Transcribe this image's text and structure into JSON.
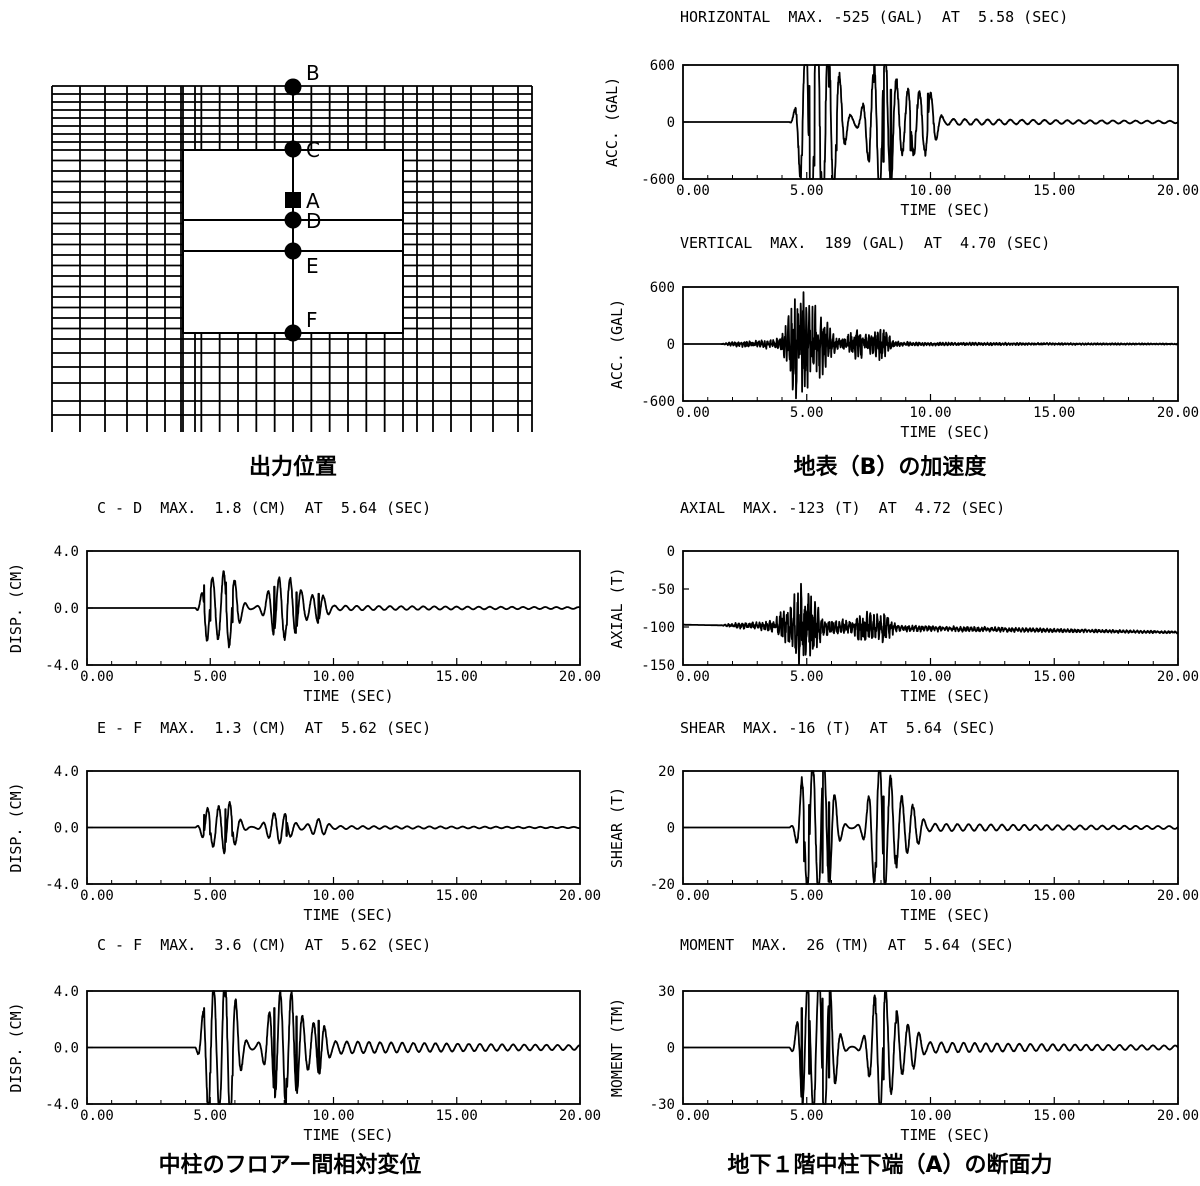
{
  "figure": {
    "mesh_caption": "出力位置",
    "ground_caption": "地表（B）の加速度",
    "drift_caption": "中柱のフロアー間相対変位",
    "force_caption": "地下１階中柱下端（A）の断面力",
    "mesh_points": [
      {
        "label": "B",
        "marker": "circle"
      },
      {
        "label": "C",
        "marker": "circle"
      },
      {
        "label": "A",
        "marker": "square"
      },
      {
        "label": "D",
        "marker": "circle"
      },
      {
        "label": "E",
        "marker": "circle"
      },
      {
        "label": "F",
        "marker": "circle"
      }
    ]
  },
  "chart_data": [
    {
      "type": "line",
      "title": "HORIZONTAL  MAX. -525 (GAL)  AT  5.58 (SEC)",
      "xlabel": "TIME (SEC)",
      "ylabel": "ACC. (GAL)",
      "xlim": [
        0,
        20
      ],
      "ylim": [
        -600,
        600
      ],
      "xticks": [
        "0.00",
        "5.00",
        "10.00",
        "15.00",
        "20.00"
      ],
      "yticks": [
        "600",
        "0",
        "-600"
      ],
      "series": [
        {
          "onset": 4.3,
          "dom_period": 0.46,
          "peaks": [
            [
              4.8,
              -350
            ],
            [
              5.1,
              380
            ],
            [
              5.3,
              -460
            ],
            [
              5.58,
              -525
            ],
            [
              5.9,
              370
            ],
            [
              6.2,
              -300
            ],
            [
              7.7,
              420
            ],
            [
              8.1,
              -420
            ],
            [
              8.4,
              340
            ],
            [
              9.2,
              -300
            ],
            [
              9.9,
              300
            ]
          ],
          "decay_to": 30,
          "noise": 0.04
        }
      ]
    },
    {
      "type": "line",
      "title": "VERTICAL  MAX.  189 (GAL)  AT  4.70 (SEC)",
      "xlabel": "TIME (SEC)",
      "ylabel": "ACC. (GAL)",
      "xlim": [
        0,
        20
      ],
      "ylim": [
        -600,
        600
      ],
      "xticks": [
        "0.00",
        "5.00",
        "10.00",
        "15.00",
        "20.00"
      ],
      "yticks": [
        "600",
        "0",
        "-600"
      ],
      "series": [
        {
          "onset": 1.5,
          "dom_period": 0.12,
          "peaks": [
            [
              4.7,
              189
            ],
            [
              5.2,
              -130
            ],
            [
              4.5,
              120
            ],
            [
              5.7,
              -110
            ],
            [
              7.0,
              90
            ],
            [
              8.0,
              -90
            ]
          ],
          "decay_to": 8,
          "noise": 0.35,
          "base_amp": 40
        }
      ]
    },
    {
      "type": "line",
      "title": "C - D  MAX.  1.8 (CM)  AT  5.64 (SEC)",
      "xlabel": "TIME (SEC)",
      "ylabel": "DISP. (CM)",
      "xlim": [
        0,
        20
      ],
      "ylim": [
        -4,
        4
      ],
      "xticks": [
        "0.00",
        "5.00",
        "10.00",
        "15.00",
        "20.00"
      ],
      "yticks": [
        "4.0",
        "0.0",
        "-4.0"
      ],
      "series": [
        {
          "onset": 4.4,
          "dom_period": 0.45,
          "peaks": [
            [
              4.75,
              1.6
            ],
            [
              5.0,
              -0.9
            ],
            [
              5.64,
              1.8
            ],
            [
              5.9,
              -1.0
            ],
            [
              7.6,
              1.5
            ],
            [
              8.1,
              -1.2
            ],
            [
              8.5,
              1.1
            ],
            [
              9.4,
              1.0
            ]
          ],
          "decay_to": 0.15,
          "noise": 0.02
        }
      ]
    },
    {
      "type": "line",
      "title": "AXIAL  MAX. -123 (T)  AT  4.72 (SEC)",
      "xlabel": "TIME (SEC)",
      "ylabel": "AXIAL (T)",
      "xlim": [
        0,
        20
      ],
      "ylim": [
        -150,
        0
      ],
      "xticks": [
        "0.00",
        "5.00",
        "10.00",
        "15.00",
        "20.00"
      ],
      "yticks": [
        "0",
        "-50",
        "-100",
        "-150"
      ],
      "series": [
        {
          "baseline": -97,
          "baseline_end": -107,
          "onset": 1.5,
          "dom_period": 0.14,
          "peaks": [
            [
              4.72,
              -26
            ],
            [
              5.2,
              -18
            ],
            [
              4.0,
              10
            ],
            [
              7.3,
              -12
            ],
            [
              8.1,
              -10
            ]
          ],
          "decay_to": 2,
          "noise": 0.3,
          "base_amp": 6
        }
      ]
    },
    {
      "type": "line",
      "title": "E - F  MAX.  1.3 (CM)  AT  5.62 (SEC)",
      "xlabel": "TIME (SEC)",
      "ylabel": "DISP. (CM)",
      "xlim": [
        0,
        20
      ],
      "ylim": [
        -4,
        4
      ],
      "xticks": [
        "0.00",
        "5.00",
        "10.00",
        "15.00",
        "20.00"
      ],
      "yticks": [
        "4.0",
        "0.0",
        "-4.0"
      ],
      "series": [
        {
          "onset": 4.4,
          "dom_period": 0.45,
          "peaks": [
            [
              4.75,
              0.9
            ],
            [
              5.0,
              -0.5
            ],
            [
              5.62,
              1.3
            ],
            [
              5.9,
              -0.6
            ],
            [
              7.6,
              0.9
            ],
            [
              8.1,
              -0.6
            ],
            [
              9.4,
              0.6
            ]
          ],
          "decay_to": 0.1,
          "noise": 0.02
        }
      ]
    },
    {
      "type": "line",
      "title": "SHEAR  MAX. -16 (T)  AT  5.64 (SEC)",
      "xlabel": "TIME (SEC)",
      "ylabel": "SHEAR (T)",
      "xlim": [
        0,
        20
      ],
      "ylim": [
        -20,
        20
      ],
      "xticks": [
        "0.00",
        "5.00",
        "10.00",
        "15.00",
        "20.00"
      ],
      "yticks": [
        "20",
        "0",
        "-20"
      ],
      "series": [
        {
          "onset": 4.3,
          "dom_period": 0.45,
          "peaks": [
            [
              4.9,
              -12
            ],
            [
              5.1,
              8
            ],
            [
              5.64,
              -16
            ],
            [
              5.9,
              9
            ],
            [
              7.8,
              -14
            ],
            [
              8.1,
              11
            ],
            [
              8.6,
              -10
            ],
            [
              9.3,
              7
            ]
          ],
          "decay_to": 1.2,
          "noise": 0.02
        }
      ]
    },
    {
      "type": "line",
      "title": "C - F  MAX.  3.6 (CM)  AT  5.62 (SEC)",
      "xlabel": "TIME (SEC)",
      "ylabel": "DISP. (CM)",
      "xlim": [
        0,
        20
      ],
      "ylim": [
        -4,
        4
      ],
      "xticks": [
        "0.00",
        "5.00",
        "10.00",
        "15.00",
        "20.00"
      ],
      "yticks": [
        "4.0",
        "0.0",
        "-4.0"
      ],
      "series": [
        {
          "onset": 4.4,
          "dom_period": 0.45,
          "peaks": [
            [
              4.75,
              2.8
            ],
            [
              5.0,
              -1.8
            ],
            [
              5.62,
              3.6
            ],
            [
              5.9,
              -2.0
            ],
            [
              7.6,
              2.8
            ],
            [
              8.1,
              -2.2
            ],
            [
              8.5,
              2.2
            ],
            [
              9.4,
              1.9
            ]
          ],
          "decay_to": 0.4,
          "noise": 0.02
        }
      ]
    },
    {
      "type": "line",
      "title": "MOMENT  MAX.  26 (TM)  AT  5.64 (SEC)",
      "xlabel": "TIME (SEC)",
      "ylabel": "MOMENT (TM)",
      "xlim": [
        0,
        20
      ],
      "ylim": [
        -30,
        30
      ],
      "xticks": [
        "0.00",
        "5.00",
        "10.00",
        "15.00",
        "20.00"
      ],
      "yticks": [
        "30",
        "0",
        "-30"
      ],
      "series": [
        {
          "onset": 4.3,
          "dom_period": 0.45,
          "peaks": [
            [
              4.8,
              21
            ],
            [
              5.1,
              -14
            ],
            [
              5.64,
              26
            ],
            [
              5.9,
              -16
            ],
            [
              7.8,
              18
            ],
            [
              8.1,
              -17
            ],
            [
              8.6,
              13
            ],
            [
              9.3,
              -10
            ]
          ],
          "decay_to": 2.5,
          "noise": 0.02
        }
      ]
    }
  ]
}
